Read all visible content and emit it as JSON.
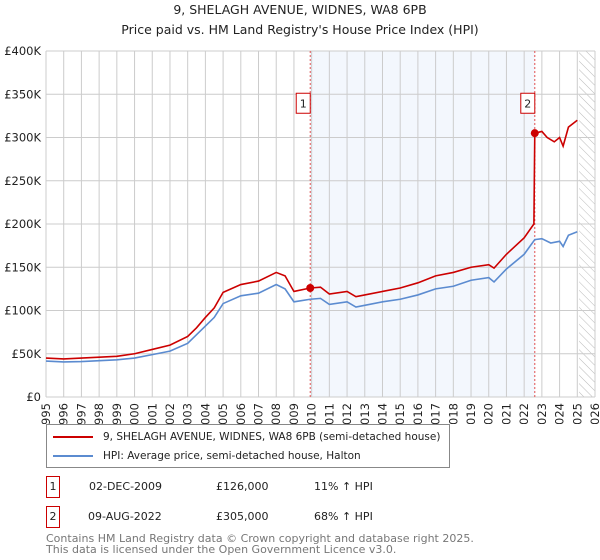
{
  "title": "9, SHELAGH AVENUE, WIDNES, WA8 6PB",
  "subtitle": "Price paid vs. HM Land Registry's House Price Index (HPI)",
  "chart_data": {
    "type": "line",
    "title": "9, SHELAGH AVENUE, WIDNES, WA8 6PB",
    "subtitle": "Price paid vs. HM Land Registry's House Price Index (HPI)",
    "xlim": [
      1995,
      2026
    ],
    "ylim": [
      0,
      400000
    ],
    "xticks": [
      "1995",
      "1996",
      "1997",
      "1998",
      "1999",
      "2000",
      "2001",
      "2002",
      "2003",
      "2004",
      "2005",
      "2006",
      "2007",
      "2008",
      "2009",
      "2010",
      "2011",
      "2012",
      "2013",
      "2014",
      "2015",
      "2016",
      "2017",
      "2018",
      "2019",
      "2020",
      "2021",
      "2022",
      "2023",
      "2024",
      "2025",
      "2026"
    ],
    "yticks": [
      {
        "v": 0,
        "label": "£0"
      },
      {
        "v": 50000,
        "label": "£50K"
      },
      {
        "v": 100000,
        "label": "£100K"
      },
      {
        "v": 150000,
        "label": "£150K"
      },
      {
        "v": 200000,
        "label": "£200K"
      },
      {
        "v": 250000,
        "label": "£250K"
      },
      {
        "v": 300000,
        "label": "£300K"
      },
      {
        "v": 350000,
        "label": "£350K"
      },
      {
        "v": 400000,
        "label": "£400K"
      }
    ],
    "grid": true,
    "shaded_range": [
      2009.92,
      2022.6
    ],
    "forecast_hatch_from": 2025.1,
    "series": [
      {
        "name": "9, SHELAGH AVENUE, WIDNES, WA8 6PB (semi-detached house)",
        "color": "#cc0000",
        "x": [
          1995,
          1996,
          1997,
          1998,
          1999,
          2000,
          2001,
          2002,
          2003,
          2003.5,
          2004,
          2004.5,
          2005,
          2006,
          2007,
          2008,
          2008.5,
          2009,
          2009.92,
          2010.5,
          2011,
          2012,
          2012.5,
          2013,
          2014,
          2015,
          2016,
          2017,
          2018,
          2019,
          2020,
          2020.3,
          2021,
          2022,
          2022.55,
          2022.6,
          2023,
          2023.3,
          2023.7,
          2024,
          2024.2,
          2024.5,
          2025
        ],
        "y": [
          45000,
          44000,
          45000,
          46000,
          47000,
          50000,
          55000,
          60000,
          70000,
          80000,
          92000,
          103000,
          121000,
          130000,
          134000,
          144000,
          140000,
          122000,
          126000,
          127000,
          119000,
          122000,
          116000,
          118000,
          122000,
          126000,
          132000,
          140000,
          144000,
          150000,
          153000,
          149000,
          165000,
          184000,
          200000,
          305000,
          307000,
          300000,
          295000,
          300000,
          290000,
          312000,
          320000
        ]
      },
      {
        "name": "HPI: Average price, semi-detached house, Halton",
        "color": "#5b8bd0",
        "x": [
          1995,
          1996,
          1997,
          1998,
          1999,
          2000,
          2001,
          2002,
          2003,
          2003.5,
          2004,
          2004.5,
          2005,
          2006,
          2007,
          2008,
          2008.5,
          2009,
          2009.92,
          2010.5,
          2011,
          2012,
          2012.5,
          2013,
          2014,
          2015,
          2016,
          2017,
          2018,
          2019,
          2020,
          2020.3,
          2021,
          2022,
          2022.6,
          2023,
          2023.5,
          2024,
          2024.2,
          2024.5,
          2025
        ],
        "y": [
          41500,
          40500,
          41000,
          42000,
          43000,
          45000,
          49000,
          53000,
          62000,
          72000,
          82000,
          92000,
          108000,
          117000,
          120000,
          130000,
          125000,
          110000,
          113000,
          114000,
          107000,
          110000,
          104000,
          106000,
          110000,
          113000,
          118000,
          125000,
          128000,
          135000,
          138000,
          133000,
          148000,
          165000,
          182000,
          183000,
          178000,
          180000,
          174000,
          187000,
          191000
        ]
      }
    ],
    "sales": [
      {
        "label": "1",
        "x": 2009.92,
        "y": 126000
      },
      {
        "label": "2",
        "x": 2022.6,
        "y": 305000
      }
    ]
  },
  "legend": {
    "red": "9, SHELAGH AVENUE, WIDNES, WA8 6PB (semi-detached house)",
    "blue": "HPI: Average price, semi-detached house, Halton"
  },
  "transactions": [
    {
      "num": "1",
      "date": "02-DEC-2009",
      "price": "£126,000",
      "hpi": "11% ↑ HPI"
    },
    {
      "num": "2",
      "date": "09-AUG-2022",
      "price": "£305,000",
      "hpi": "68% ↑ HPI"
    }
  ],
  "footer": {
    "line1": "Contains HM Land Registry data © Crown copyright and database right 2025.",
    "line2": "This data is licensed under the Open Government Licence v3.0."
  }
}
